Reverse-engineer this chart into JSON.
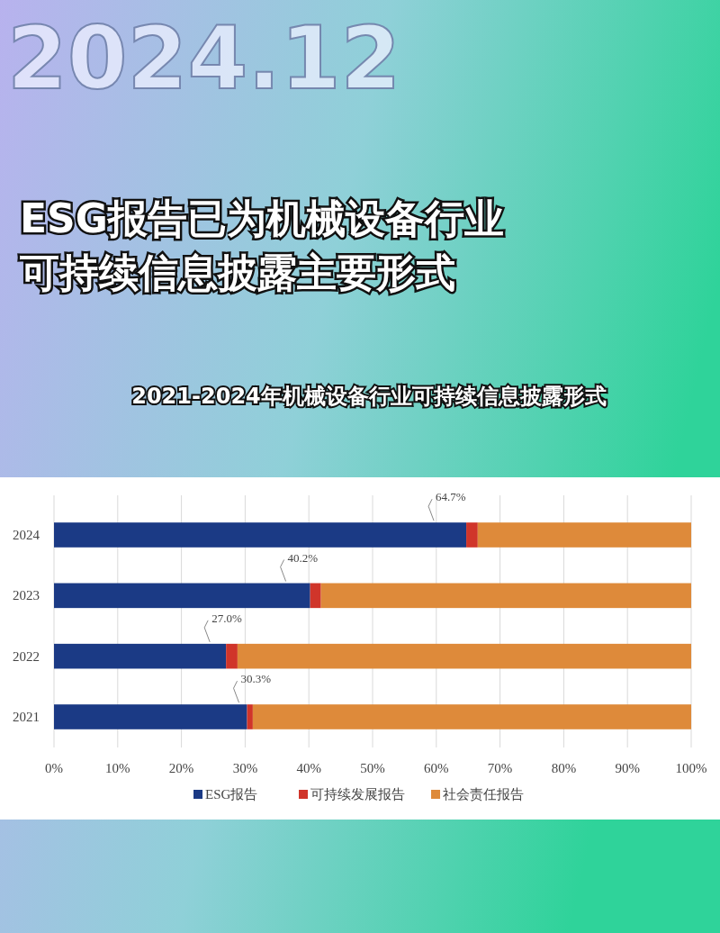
{
  "chart_data": {
    "type": "bar",
    "orientation": "horizontal",
    "stacked": true,
    "title": "ESG报告已为机械设备行业可持续信息披露主要形式",
    "subtitle": "2021-2024年机械设备行业可持续信息披露形式",
    "annotations": [
      "2024.12"
    ],
    "categories": [
      "2024",
      "2023",
      "2022",
      "2021"
    ],
    "series": [
      {
        "name": "ESG报告",
        "color": "#1b3a85",
        "values": [
          64.7,
          40.2,
          27.0,
          30.3
        ],
        "value_labels": [
          "64.7%",
          "40.2%",
          "27.0%",
          "30.3%"
        ]
      },
      {
        "name": "可持续发展报告",
        "color": "#d0352a",
        "values": [
          1.8,
          1.7,
          1.8,
          0.9
        ]
      },
      {
        "name": "社会责任报告",
        "color": "#de8a3a",
        "values": [
          33.5,
          58.1,
          71.2,
          68.8
        ]
      }
    ],
    "xlim": [
      0,
      100
    ],
    "xticks": [
      {
        "value": 0,
        "label": "0%"
      },
      {
        "value": 10,
        "label": "10%"
      },
      {
        "value": 20,
        "label": "20%"
      },
      {
        "value": 30,
        "label": "30%"
      },
      {
        "value": 40,
        "label": "40%"
      },
      {
        "value": 50,
        "label": "50%"
      },
      {
        "value": 60,
        "label": "60%"
      },
      {
        "value": 70,
        "label": "70%"
      },
      {
        "value": 80,
        "label": "80%"
      },
      {
        "value": 90,
        "label": "90%"
      },
      {
        "value": 100,
        "label": "100%"
      }
    ],
    "grid": "x",
    "legend": "bottom"
  }
}
